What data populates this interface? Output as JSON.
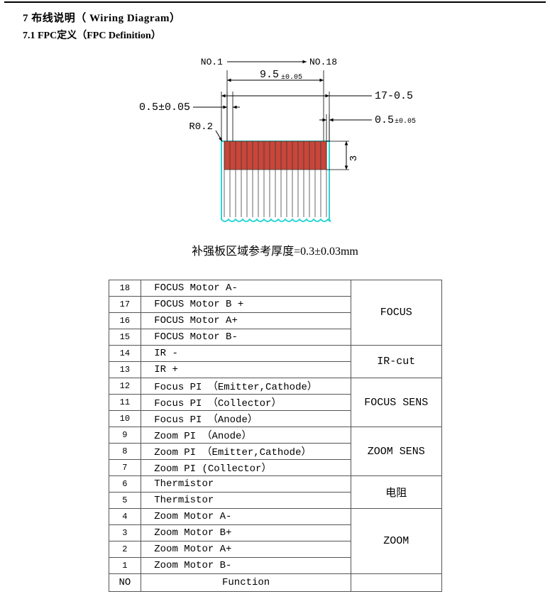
{
  "headings": {
    "h1": "7 布线说明（ Wiring Diagram）",
    "h2": "7.1 FPC定义（FPC  Definition）"
  },
  "diagram": {
    "pin_left_label": "NO.1",
    "pin_right_label": "NO.18",
    "dim_width": "9.5",
    "dim_width_tol": "±0.05",
    "dim_pitch": "0.5±0.05",
    "dim_radius": "R0.2",
    "dim_overall": "17-0.5",
    "dim_edge": "0.5",
    "dim_edge_tol": "±0.05",
    "dim_pad_h": "3",
    "pad_color": "#c9463a",
    "pad_stroke": "#333333",
    "outline_color": "#2bd4d4",
    "body_fill": "#ffffff",
    "dim_line_color": "#000000",
    "n_pins": 18,
    "caption": "补强板区域参考厚度=0.3±0.03mm"
  },
  "pin_table": {
    "header_no": "NO",
    "header_fn": "Function",
    "rows": [
      {
        "no": "18",
        "fn": "FOCUS  Motor A-"
      },
      {
        "no": "17",
        "fn": "FOCUS  Motor B +"
      },
      {
        "no": "16",
        "fn": "FOCUS  Motor A+"
      },
      {
        "no": "15",
        "fn": "FOCUS  Motor B-"
      },
      {
        "no": "14",
        "fn": "IR  -"
      },
      {
        "no": "13",
        "fn": "IR  +"
      },
      {
        "no": "12",
        "fn": "Focus  PI （Emitter,Cathode）"
      },
      {
        "no": "11",
        "fn": "Focus  PI （Collector）"
      },
      {
        "no": "10",
        "fn": "Focus  PI （Anode）"
      },
      {
        "no": "9",
        "fn": "Zoom PI （Anode）"
      },
      {
        "no": "8",
        "fn": "Zoom PI （Emitter,Cathode）"
      },
      {
        "no": "7",
        "fn": "Zoom PI (Collector）"
      },
      {
        "no": "6",
        "fn": "Thermistor"
      },
      {
        "no": "5",
        "fn": "Thermistor"
      },
      {
        "no": "4",
        "fn": "Zoom  Motor A-"
      },
      {
        "no": "3",
        "fn": "Zoom  Motor B+"
      },
      {
        "no": "2",
        "fn": "Zoom  Motor A+"
      },
      {
        "no": "1",
        "fn": "Zoom  Motor B-"
      }
    ],
    "groups": [
      {
        "label": "FOCUS",
        "span": 4
      },
      {
        "label": "IR-cut",
        "span": 2
      },
      {
        "label": "FOCUS SENS",
        "span": 3
      },
      {
        "label": "ZOOM SENS",
        "span": 3
      },
      {
        "label": "电阻",
        "span": 2
      },
      {
        "label": "ZOOM",
        "span": 4
      }
    ]
  }
}
